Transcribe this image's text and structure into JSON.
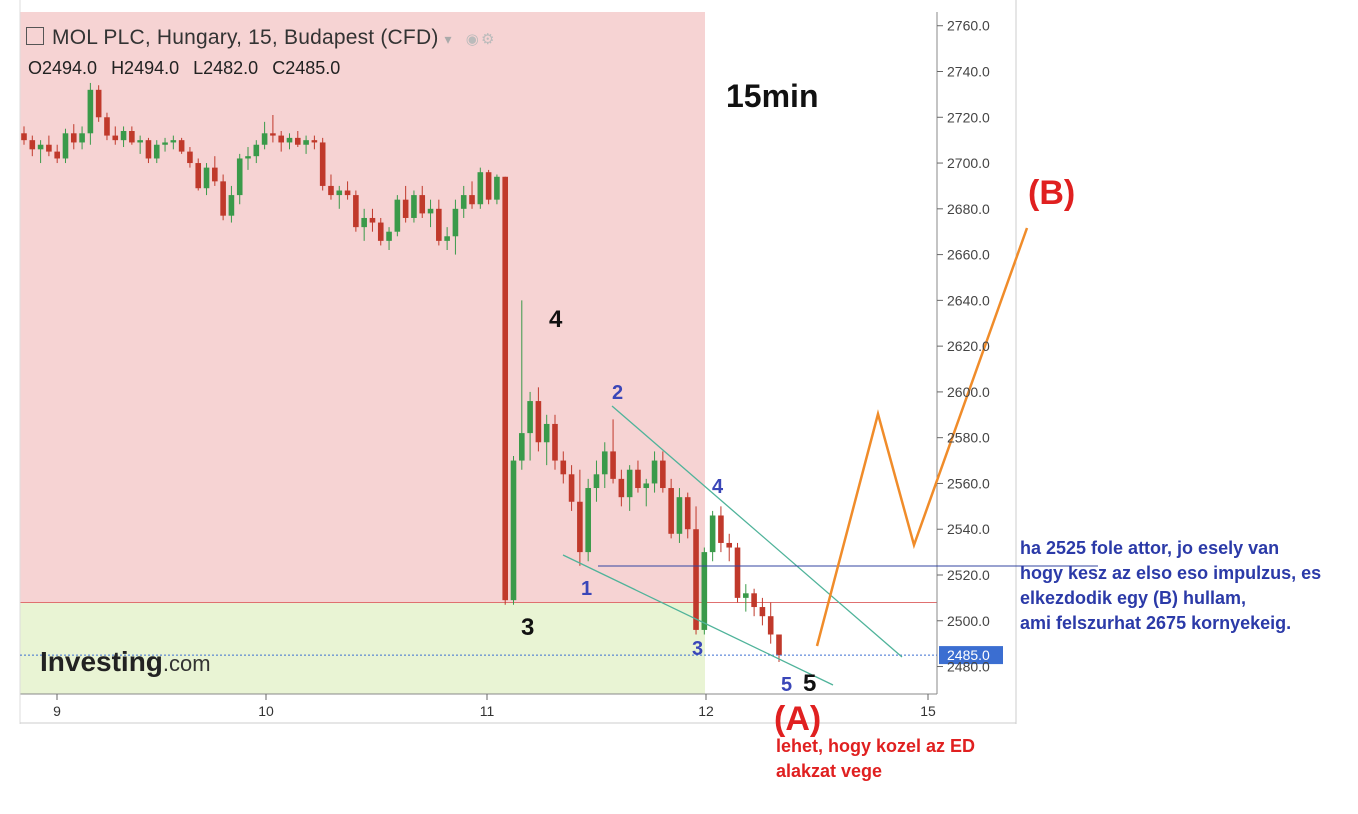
{
  "header": {
    "title": "MOL PLC, Hungary, 15, Budapest (CFD)",
    "ohlc": {
      "o": "O2494.0",
      "h": "H2494.0",
      "l": "L2482.0",
      "c": "C2485.0"
    }
  },
  "logo": {
    "brand": "Investing",
    "suffix": ".com"
  },
  "annotations": {
    "timeframe": "15min",
    "wave_b": "(B)",
    "wave_a": "(A)",
    "big_3": "3",
    "big_4": "4",
    "big_5": "5",
    "small_1": "1",
    "small_2": "2",
    "small_3": "3",
    "small_4": "4",
    "small_5": "5",
    "note_blue": [
      "ha 2525 fole attor, jo esely van",
      "hogy kesz az elso eso impulzus, es",
      "elkezdodik egy (B) hullam,",
      "ami felszurhat 2675 kornyekeig."
    ],
    "note_red": [
      "lehet, hogy kozel az ED",
      "alakzat vege"
    ]
  },
  "colors": {
    "red_zone": "#f6d3d3",
    "green_zone": "#e9f4d4",
    "bull": "#3a9a4a",
    "bear": "#c0392b",
    "projection": "#f08c2a",
    "channel": "#4fb39a",
    "blue_text": "#2b3aa8",
    "red_text": "#e02020",
    "price_tag": "#3b6ed1"
  },
  "chart_data": {
    "type": "candlestick",
    "x_ticks": [
      "9",
      "10",
      "11",
      "12",
      "15"
    ],
    "ylim": [
      2468,
      2766
    ],
    "y_ticks": [
      2480,
      2500,
      2520,
      2540,
      2560,
      2580,
      2600,
      2620,
      2640,
      2660,
      2680,
      2700,
      2720,
      2740,
      2760
    ],
    "y_tick_labels": [
      "2480.0",
      "2500.0",
      "2520.0",
      "2540.0",
      "2560.0",
      "2580.0",
      "2600.0",
      "2620.0",
      "2640.0",
      "2660.0",
      "2680.0",
      "2700.0",
      "2720.0",
      "2740.0",
      "2760.0"
    ],
    "last_price": 2485,
    "last_price_label": "2485.0",
    "red_zone_bottom": 2508,
    "candles": [
      [
        2713,
        2716,
        2708,
        2710
      ],
      [
        2710,
        2712,
        2703,
        2706
      ],
      [
        2706,
        2710,
        2700,
        2708
      ],
      [
        2708,
        2712,
        2703,
        2705
      ],
      [
        2705,
        2708,
        2700,
        2702
      ],
      [
        2702,
        2715,
        2700,
        2713
      ],
      [
        2713,
        2717,
        2706,
        2709
      ],
      [
        2709,
        2716,
        2706,
        2713
      ],
      [
        2713,
        2735,
        2708,
        2732
      ],
      [
        2732,
        2734,
        2718,
        2720
      ],
      [
        2720,
        2722,
        2710,
        2712
      ],
      [
        2712,
        2716,
        2708,
        2710
      ],
      [
        2710,
        2716,
        2707,
        2714
      ],
      [
        2714,
        2716,
        2708,
        2709
      ],
      [
        2709,
        2712,
        2704,
        2710
      ],
      [
        2710,
        2711,
        2700,
        2702
      ],
      [
        2702,
        2710,
        2700,
        2708
      ],
      [
        2708,
        2711,
        2705,
        2709
      ],
      [
        2709,
        2712,
        2706,
        2710
      ],
      [
        2710,
        2711,
        2704,
        2705
      ],
      [
        2705,
        2707,
        2698,
        2700
      ],
      [
        2700,
        2702,
        2688,
        2689
      ],
      [
        2689,
        2700,
        2686,
        2698
      ],
      [
        2698,
        2703,
        2690,
        2692
      ],
      [
        2692,
        2695,
        2675,
        2677
      ],
      [
        2677,
        2690,
        2674,
        2686
      ],
      [
        2686,
        2704,
        2682,
        2702
      ],
      [
        2702,
        2707,
        2697,
        2703
      ],
      [
        2703,
        2710,
        2700,
        2708
      ],
      [
        2708,
        2718,
        2706,
        2713
      ],
      [
        2713,
        2721,
        2709,
        2712
      ],
      [
        2712,
        2714,
        2705,
        2709
      ],
      [
        2709,
        2713,
        2706,
        2711
      ],
      [
        2711,
        2714,
        2707,
        2708
      ],
      [
        2708,
        2712,
        2704,
        2710
      ],
      [
        2710,
        2712,
        2706,
        2709
      ],
      [
        2709,
        2711,
        2688,
        2690
      ],
      [
        2690,
        2695,
        2684,
        2686
      ],
      [
        2686,
        2690,
        2680,
        2688
      ],
      [
        2688,
        2692,
        2684,
        2686
      ],
      [
        2686,
        2688,
        2670,
        2672
      ],
      [
        2672,
        2680,
        2666,
        2676
      ],
      [
        2676,
        2680,
        2670,
        2674
      ],
      [
        2674,
        2676,
        2664,
        2666
      ],
      [
        2666,
        2672,
        2662,
        2670
      ],
      [
        2670,
        2686,
        2668,
        2684
      ],
      [
        2684,
        2690,
        2674,
        2676
      ],
      [
        2676,
        2688,
        2674,
        2686
      ],
      [
        2686,
        2690,
        2676,
        2678
      ],
      [
        2678,
        2684,
        2672,
        2680
      ],
      [
        2680,
        2684,
        2664,
        2666
      ],
      [
        2666,
        2672,
        2662,
        2668
      ],
      [
        2668,
        2684,
        2660,
        2680
      ],
      [
        2680,
        2690,
        2676,
        2686
      ],
      [
        2686,
        2692,
        2680,
        2682
      ],
      [
        2682,
        2698,
        2680,
        2696
      ],
      [
        2696,
        2697,
        2682,
        2684
      ],
      [
        2684,
        2695,
        2682,
        2694
      ],
      [
        2694,
        2694,
        2507,
        2509
      ],
      [
        2509,
        2572,
        2507,
        2570
      ],
      [
        2570,
        2640,
        2566,
        2582
      ],
      [
        2582,
        2600,
        2570,
        2596
      ],
      [
        2596,
        2602,
        2574,
        2578
      ],
      [
        2578,
        2590,
        2568,
        2586
      ],
      [
        2586,
        2590,
        2566,
        2570
      ],
      [
        2570,
        2574,
        2560,
        2564
      ],
      [
        2564,
        2568,
        2548,
        2552
      ],
      [
        2552,
        2566,
        2524,
        2530
      ],
      [
        2530,
        2562,
        2526,
        2558
      ],
      [
        2558,
        2570,
        2552,
        2564
      ],
      [
        2564,
        2578,
        2558,
        2574
      ],
      [
        2574,
        2588,
        2560,
        2562
      ],
      [
        2562,
        2566,
        2550,
        2554
      ],
      [
        2554,
        2568,
        2548,
        2566
      ],
      [
        2566,
        2570,
        2556,
        2558
      ],
      [
        2558,
        2562,
        2550,
        2560
      ],
      [
        2560,
        2574,
        2556,
        2570
      ],
      [
        2570,
        2574,
        2556,
        2558
      ],
      [
        2558,
        2562,
        2536,
        2538
      ],
      [
        2538,
        2558,
        2534,
        2554
      ],
      [
        2554,
        2556,
        2536,
        2540
      ],
      [
        2540,
        2550,
        2494,
        2496
      ],
      [
        2496,
        2532,
        2494,
        2530
      ],
      [
        2530,
        2548,
        2526,
        2546
      ],
      [
        2546,
        2550,
        2530,
        2534
      ],
      [
        2534,
        2538,
        2526,
        2532
      ],
      [
        2532,
        2534,
        2508,
        2510
      ],
      [
        2510,
        2516,
        2504,
        2512
      ],
      [
        2512,
        2514,
        2502,
        2506
      ],
      [
        2506,
        2510,
        2498,
        2502
      ],
      [
        2502,
        2508,
        2490,
        2494
      ],
      [
        2494,
        2494,
        2482,
        2485
      ]
    ]
  }
}
